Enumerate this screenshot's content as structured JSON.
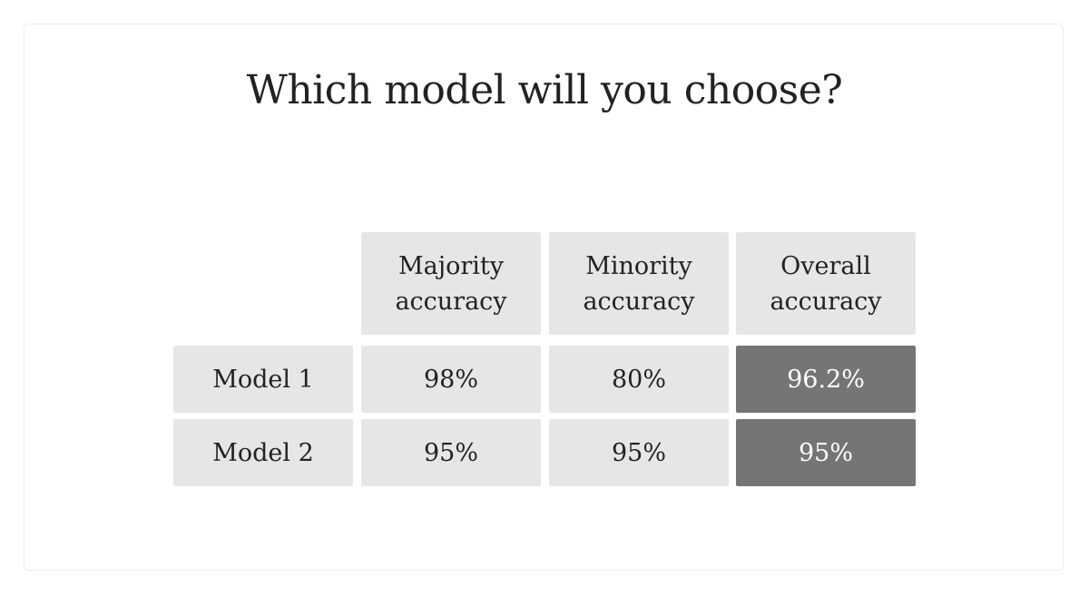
{
  "title": "Which model will you choose?",
  "table": {
    "columns": [
      {
        "line1": "Majority",
        "line2": "accuracy"
      },
      {
        "line1": "Minority",
        "line2": "accuracy"
      },
      {
        "line1": "Overall",
        "line2": "accuracy"
      }
    ],
    "rows": [
      {
        "label": "Model 1",
        "majority": "98%",
        "minority": "80%",
        "overall": "96.2%"
      },
      {
        "label": "Model 2",
        "majority": "95%",
        "minority": "95%",
        "overall": "95%"
      }
    ]
  },
  "colors": {
    "cell_background": "#e6e6e6",
    "highlight_background": "#757575",
    "highlight_text": "#ffffff",
    "text": "#222222"
  }
}
